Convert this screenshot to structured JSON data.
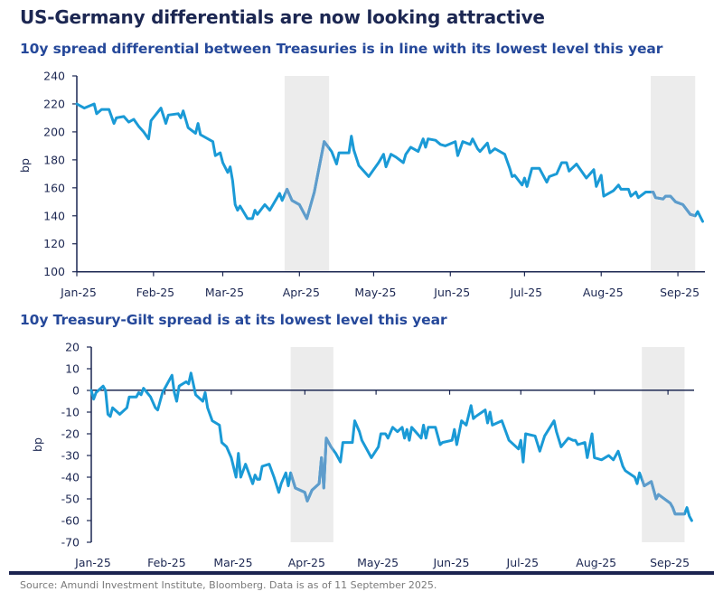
{
  "title": "US-Germany differentials are now looking attractive",
  "footer": {
    "source": "Source: Amundi Investment Institute, Bloomberg. Data is as of 11 September 2025."
  },
  "colors": {
    "line": "#1a9ad6",
    "line_shaded": "#5f9ccb",
    "shade": "#ececec",
    "axis": "#1c2752",
    "title": "#1c2752",
    "subtitle": "#25489a"
  },
  "chart_data": [
    {
      "type": "line",
      "title": "10y spread differential between Treasuries is in line with its lowest level this year",
      "ylabel": "bp",
      "xlabel": "",
      "ylim": [
        100,
        240
      ],
      "yticks": [
        240,
        220,
        200,
        180,
        160,
        140,
        120,
        100
      ],
      "xticks": [
        "Jan-25",
        "Feb-25",
        "Mar-25",
        "Apr-25",
        "May-25",
        "Jun-25",
        "Jul-25",
        "Aug-25",
        "Sep-25"
      ],
      "grid": false,
      "shaded_periods": [
        [
          "2025-03-26",
          "2025-04-13"
        ],
        [
          "2025-08-21",
          "2025-09-08"
        ]
      ],
      "x": [
        "2025-01-01",
        "2025-01-04",
        "2025-01-08",
        "2025-01-09",
        "2025-01-11",
        "2025-01-14",
        "2025-01-16",
        "2025-01-17",
        "2025-01-20",
        "2025-01-22",
        "2025-01-24",
        "2025-01-26",
        "2025-01-28",
        "2025-01-30",
        "2025-01-31",
        "2025-02-04",
        "2025-02-06",
        "2025-02-07",
        "2025-02-11",
        "2025-02-12",
        "2025-02-13",
        "2025-02-15",
        "2025-02-18",
        "2025-02-19",
        "2025-02-20",
        "2025-02-25",
        "2025-02-26",
        "2025-02-28",
        "2025-03-01",
        "2025-03-03",
        "2025-03-04",
        "2025-03-05",
        "2025-03-06",
        "2025-03-07",
        "2025-03-08",
        "2025-03-11",
        "2025-03-13",
        "2025-03-14",
        "2025-03-15",
        "2025-03-18",
        "2025-03-20",
        "2025-03-24",
        "2025-03-25",
        "2025-03-27",
        "2025-03-29",
        "2025-04-01",
        "2025-04-04",
        "2025-04-07",
        "2025-04-11",
        "2025-04-14",
        "2025-04-16",
        "2025-04-17",
        "2025-04-21",
        "2025-04-22",
        "2025-04-23",
        "2025-04-25",
        "2025-04-29",
        "2025-05-01",
        "2025-05-03",
        "2025-05-05",
        "2025-05-06",
        "2025-05-08",
        "2025-05-10",
        "2025-05-13",
        "2025-05-14",
        "2025-05-16",
        "2025-05-19",
        "2025-05-21",
        "2025-05-22",
        "2025-05-23",
        "2025-05-26",
        "2025-05-28",
        "2025-05-30",
        "2025-06-03",
        "2025-06-04",
        "2025-06-06",
        "2025-06-09",
        "2025-06-10",
        "2025-06-12",
        "2025-06-13",
        "2025-06-16",
        "2025-06-17",
        "2025-06-19",
        "2025-06-23",
        "2025-06-25",
        "2025-06-26",
        "2025-06-27",
        "2025-06-30",
        "2025-07-01",
        "2025-07-02",
        "2025-07-04",
        "2025-07-07",
        "2025-07-10",
        "2025-07-11",
        "2025-07-14",
        "2025-07-16",
        "2025-07-18",
        "2025-07-19",
        "2025-07-22",
        "2025-07-26",
        "2025-07-29",
        "2025-07-30",
        "2025-08-01",
        "2025-08-02",
        "2025-08-06",
        "2025-08-08",
        "2025-08-09",
        "2025-08-12",
        "2025-08-13",
        "2025-08-15",
        "2025-08-16",
        "2025-08-19",
        "2025-08-22",
        "2025-08-23",
        "2025-08-26",
        "2025-08-27",
        "2025-08-29",
        "2025-08-31",
        "2025-09-03",
        "2025-09-06",
        "2025-09-08",
        "2025-09-09",
        "2025-09-11"
      ],
      "values": [
        220,
        217,
        220,
        213,
        216,
        216,
        206,
        210,
        211,
        207,
        209,
        204,
        200,
        195,
        208,
        217,
        206,
        212,
        213,
        210,
        215,
        203,
        199,
        206,
        198,
        193,
        183,
        185,
        178,
        171,
        175,
        165,
        148,
        144,
        147,
        138,
        138,
        144,
        141,
        148,
        144,
        156,
        151,
        159,
        151,
        148,
        138,
        157,
        193,
        186,
        177,
        185,
        185,
        197,
        187,
        176,
        168,
        173,
        178,
        184,
        175,
        184,
        182,
        178,
        184,
        189,
        186,
        195,
        189,
        195,
        194,
        191,
        190,
        193,
        183,
        193,
        191,
        195,
        188,
        186,
        192,
        185,
        188,
        184,
        174,
        168,
        169,
        162,
        167,
        161,
        174,
        174,
        164,
        168,
        170,
        178,
        178,
        172,
        177,
        167,
        173,
        161,
        169,
        154,
        158,
        162,
        159,
        159,
        154,
        157,
        153,
        157,
        157,
        153,
        152,
        154,
        154,
        150,
        148,
        141,
        140,
        143,
        136
      ]
    },
    {
      "type": "line",
      "title": "10y Treasury-Gilt spread is at its lowest level this year",
      "ylabel": "bp",
      "xlabel": "",
      "ylim": [
        -70,
        20
      ],
      "yticks": [
        20,
        10,
        0,
        -10,
        -20,
        -30,
        -40,
        -50,
        -60,
        -70
      ],
      "xticks": [
        "Jan-25",
        "Feb-25",
        "Mar-25",
        "Apr-25",
        "May-25",
        "Jun-25",
        "Jul-25",
        "Aug-25",
        "Sep-25"
      ],
      "grid": false,
      "shaded_periods": [
        [
          "2025-03-26",
          "2025-04-13"
        ],
        [
          "2025-08-21",
          "2025-09-08"
        ]
      ],
      "x": [
        "2025-01-01",
        "2025-01-02",
        "2025-01-03",
        "2025-01-06",
        "2025-01-07",
        "2025-01-08",
        "2025-01-09",
        "2025-01-10",
        "2025-01-13",
        "2025-01-16",
        "2025-01-17",
        "2025-01-20",
        "2025-01-21",
        "2025-01-22",
        "2025-01-23",
        "2025-01-26",
        "2025-01-28",
        "2025-01-29",
        "2025-01-31",
        "2025-02-04",
        "2025-02-05",
        "2025-02-06",
        "2025-02-07",
        "2025-02-10",
        "2025-02-11",
        "2025-02-12",
        "2025-02-14",
        "2025-02-17",
        "2025-02-18",
        "2025-02-19",
        "2025-02-21",
        "2025-02-24",
        "2025-02-25",
        "2025-02-27",
        "2025-03-01",
        "2025-03-03",
        "2025-03-04",
        "2025-03-05",
        "2025-03-07",
        "2025-03-10",
        "2025-03-11",
        "2025-03-12",
        "2025-03-13",
        "2025-03-14",
        "2025-03-17",
        "2025-03-19",
        "2025-03-21",
        "2025-03-22",
        "2025-03-24",
        "2025-03-25",
        "2025-03-26",
        "2025-03-28",
        "2025-04-01",
        "2025-04-02",
        "2025-04-04",
        "2025-04-07",
        "2025-04-08",
        "2025-04-09",
        "2025-04-10",
        "2025-04-12",
        "2025-04-14",
        "2025-04-16",
        "2025-04-17",
        "2025-04-21",
        "2025-04-22",
        "2025-04-24",
        "2025-04-25",
        "2025-04-29",
        "2025-05-02",
        "2025-05-03",
        "2025-05-05",
        "2025-05-06",
        "2025-05-08",
        "2025-05-10",
        "2025-05-12",
        "2025-05-13",
        "2025-05-14",
        "2025-05-15",
        "2025-05-16",
        "2025-05-20",
        "2025-05-21",
        "2025-05-22",
        "2025-05-23",
        "2025-05-26",
        "2025-05-28",
        "2025-05-29",
        "2025-06-02",
        "2025-06-03",
        "2025-06-04",
        "2025-06-06",
        "2025-06-08",
        "2025-06-10",
        "2025-06-11",
        "2025-06-12",
        "2025-06-16",
        "2025-06-17",
        "2025-06-18",
        "2025-06-19",
        "2025-06-23",
        "2025-06-26",
        "2025-06-30",
        "2025-07-01",
        "2025-07-02",
        "2025-07-03",
        "2025-07-07",
        "2025-07-09",
        "2025-07-11",
        "2025-07-15",
        "2025-07-16",
        "2025-07-18",
        "2025-07-21",
        "2025-07-23",
        "2025-07-24",
        "2025-07-25",
        "2025-07-28",
        "2025-07-29",
        "2025-07-31",
        "2025-08-01",
        "2025-08-04",
        "2025-08-07",
        "2025-08-09",
        "2025-08-11",
        "2025-08-13",
        "2025-08-14",
        "2025-08-18",
        "2025-08-19",
        "2025-08-20",
        "2025-08-22",
        "2025-08-25",
        "2025-08-27",
        "2025-08-28",
        "2025-09-02",
        "2025-09-03",
        "2025-09-04",
        "2025-09-08",
        "2025-09-09",
        "2025-09-10",
        "2025-09-11"
      ],
      "values": [
        0,
        -4,
        -1,
        2,
        0,
        -11,
        -12,
        -8,
        -11,
        -8,
        -3,
        -3,
        -1,
        -2,
        1,
        -3,
        -8,
        -9,
        -1,
        7,
        -1,
        -5,
        2,
        4,
        3,
        8,
        -2,
        -5,
        -1,
        -8,
        -14,
        -16,
        -24,
        -26,
        -31,
        -40,
        -29,
        -40,
        -34,
        -43,
        -39,
        -41,
        -41,
        -35,
        -34,
        -40,
        -47,
        -43,
        -38,
        -44,
        -38,
        -45,
        -47,
        -51,
        -46,
        -43,
        -31,
        -45,
        -22,
        -26,
        -29,
        -33,
        -24,
        -24,
        -14,
        -19,
        -23,
        -31,
        -26,
        -20,
        -20,
        -22,
        -17,
        -19,
        -17,
        -22,
        -18,
        -23,
        -17,
        -22,
        -16,
        -22,
        -17,
        -17,
        -25,
        -24,
        -23,
        -18,
        -25,
        -14,
        -16,
        -7,
        -13,
        -12,
        -9,
        -15,
        -10,
        -16,
        -14,
        -23,
        -27,
        -23,
        -33,
        -20,
        -21,
        -28,
        -21,
        -14,
        -19,
        -26,
        -22,
        -23,
        -23,
        -25,
        -24,
        -31,
        -20,
        -31,
        -32,
        -30,
        -32,
        -28,
        -35,
        -37,
        -40,
        -43,
        -38,
        -44,
        -42,
        -50,
        -48,
        -52,
        -54,
        -57,
        -57,
        -54,
        -58,
        -60
      ]
    }
  ]
}
